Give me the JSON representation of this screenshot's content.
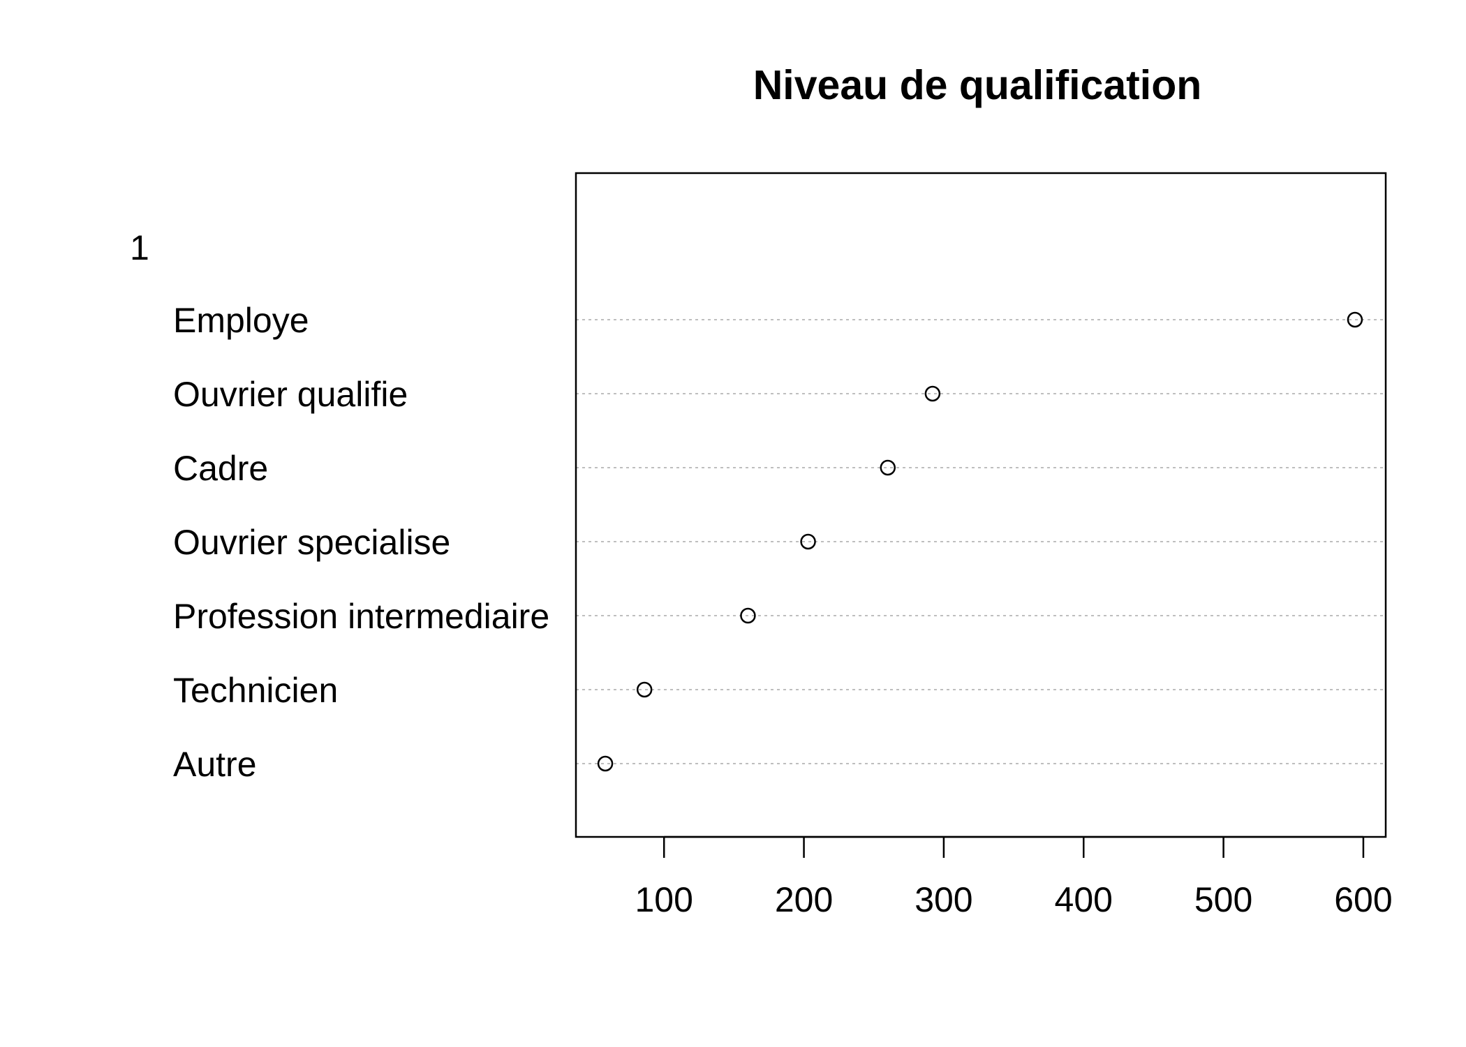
{
  "chart_data": {
    "type": "dotchart",
    "title": "Niveau de qualification",
    "group_label": "1",
    "categories": [
      "Employe",
      "Ouvrier qualifie",
      "Cadre",
      "Ouvrier specialise",
      "Profession intermediaire",
      "Technicien",
      "Autre"
    ],
    "values": [
      594,
      292,
      260,
      203,
      160,
      86,
      58
    ],
    "xlim": [
      37,
      616
    ],
    "x_ticks": [
      100,
      200,
      300,
      400,
      500,
      600
    ],
    "x_tick_labels": [
      "100",
      "200",
      "300",
      "400",
      "500",
      "600"
    ],
    "xlabel": "",
    "ylabel": "",
    "grid": "dotted horizontal lines per category",
    "marker": "open circle",
    "colors": {
      "line": "#000000",
      "grid": "#bebebe",
      "background": "#ffffff"
    }
  }
}
